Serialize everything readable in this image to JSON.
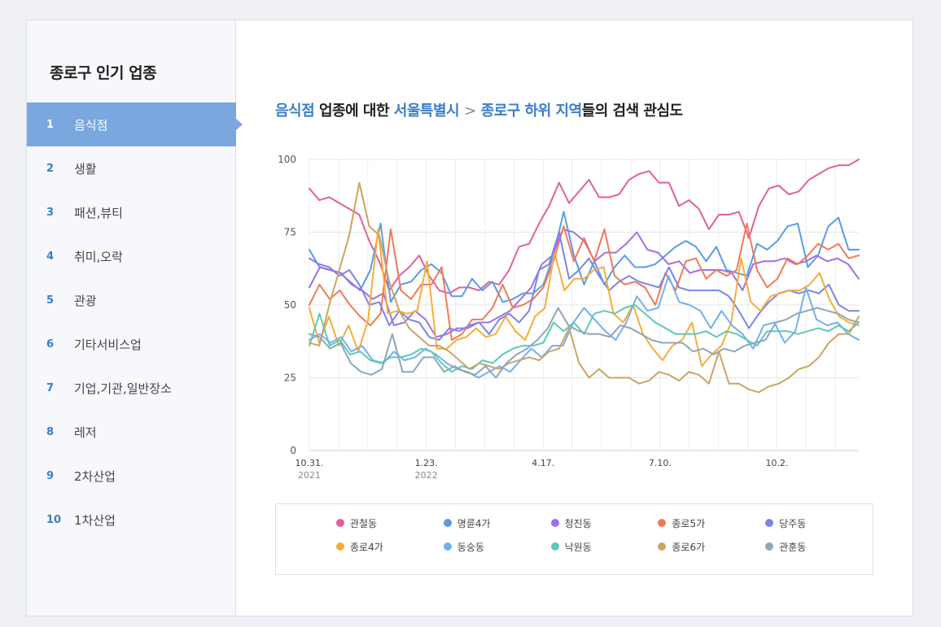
{
  "sidebar": {
    "title": "종로구 인기 업종",
    "items": [
      {
        "num": "1",
        "label": "음식점"
      },
      {
        "num": "2",
        "label": "생활"
      },
      {
        "num": "3",
        "label": "패션,뷰티"
      },
      {
        "num": "4",
        "label": "취미,오락"
      },
      {
        "num": "5",
        "label": "관광"
      },
      {
        "num": "6",
        "label": "기타서비스업"
      },
      {
        "num": "7",
        "label": "기업,기관,일반장소"
      },
      {
        "num": "8",
        "label": "레저"
      },
      {
        "num": "9",
        "label": "2차산업"
      },
      {
        "num": "10",
        "label": "1차산업"
      }
    ],
    "active_index": 0
  },
  "headline": {
    "category": "음식점",
    "text1": " 업종에 대한 ",
    "city": "서울특별시",
    "separator": ">",
    "district": "종로구 하위 지역",
    "text2": "들의 검색 관심도"
  },
  "chart_data": {
    "type": "line",
    "ylim": [
      0,
      100
    ],
    "yticks": [
      0,
      25,
      50,
      75,
      100
    ],
    "xlim": [
      0,
      47
    ],
    "xticks": [
      {
        "i": 0,
        "label": "10.31.",
        "sub": "2021"
      },
      {
        "i": 10,
        "label": "1.23.",
        "sub": "2022"
      },
      {
        "i": 20,
        "label": "4.17.",
        "sub": ""
      },
      {
        "i": 30,
        "label": "7.10.",
        "sub": ""
      },
      {
        "i": 40,
        "label": "10.2.",
        "sub": ""
      }
    ],
    "grid": true,
    "legend": "bottom",
    "series": [
      {
        "name": "관철동",
        "color": "#e0609e",
        "values": [
          90,
          86,
          87,
          85,
          83,
          81,
          72,
          65,
          55,
          60,
          63,
          67,
          60,
          55,
          54,
          56,
          56,
          55,
          58,
          57,
          62,
          70,
          71,
          78,
          84,
          92,
          85,
          89,
          93,
          87,
          87,
          88,
          93,
          95,
          96,
          92,
          92,
          84,
          86,
          83,
          76,
          81,
          81,
          82,
          73,
          84,
          90,
          91,
          88,
          89,
          93,
          95,
          97,
          98,
          98,
          100
        ]
      },
      {
        "name": "명륜4가",
        "color": "#5b9be6",
        "values": [
          69,
          63,
          62,
          61,
          58,
          55,
          62,
          78,
          51,
          57,
          58,
          62,
          64,
          61,
          53,
          53,
          59,
          55,
          58,
          51,
          52,
          54,
          54,
          57,
          67,
          82,
          67,
          57,
          65,
          57,
          63,
          67,
          63,
          63,
          64,
          67,
          70,
          72,
          70,
          65,
          70,
          62,
          61,
          60,
          71,
          69,
          72,
          77,
          78,
          63,
          67,
          77,
          80,
          69,
          69
        ]
      },
      {
        "name": "청진동",
        "color": "#a070e6",
        "values": [
          56,
          63,
          62,
          61,
          57,
          55,
          52,
          54,
          43,
          44,
          48,
          45,
          39,
          40,
          42,
          42,
          44,
          44,
          46,
          48,
          52,
          56,
          64,
          67,
          76,
          75,
          72,
          65,
          68,
          68,
          71,
          75,
          69,
          68,
          64,
          65,
          61,
          62,
          62,
          62,
          61,
          55,
          64,
          65,
          65,
          66,
          64,
          65,
          67,
          65,
          66,
          64,
          59
        ]
      },
      {
        "name": "종로5가",
        "color": "#f07a57",
        "values": [
          50,
          57,
          52,
          55,
          50,
          46,
          43,
          47,
          76,
          55,
          52,
          57,
          57,
          63,
          38,
          40,
          45,
          45,
          49,
          57,
          49,
          50,
          52,
          56,
          65,
          77,
          65,
          73,
          65,
          76,
          60,
          57,
          58,
          56,
          50,
          61,
          55,
          65,
          66,
          59,
          62,
          60,
          62,
          78,
          62,
          56,
          59,
          66,
          64,
          67,
          71,
          69,
          71,
          66,
          67
        ]
      },
      {
        "name": "당주동",
        "color": "#7b86e6",
        "values": [
          66,
          64,
          63,
          60,
          62,
          57,
          50,
          51,
          43,
          48,
          45,
          44,
          39,
          38,
          42,
          41,
          43,
          44,
          40,
          45,
          47,
          44,
          48,
          62,
          64,
          75,
          59,
          62,
          66,
          60,
          55,
          58,
          60,
          58,
          57,
          56,
          63,
          56,
          55,
          55,
          55,
          55,
          53,
          48,
          42,
          47,
          51,
          54,
          55,
          54,
          55,
          54,
          57,
          50,
          48,
          48
        ]
      },
      {
        "name": "종로4가",
        "color": "#f4ae3a",
        "values": [
          49,
          37,
          46,
          36,
          43,
          34,
          45,
          76,
          47,
          48,
          47,
          48,
          65,
          35,
          35,
          38,
          39,
          42,
          39,
          40,
          46,
          41,
          38,
          46,
          49,
          68,
          55,
          59,
          59,
          62,
          63,
          47,
          44,
          50,
          40,
          35,
          31,
          36,
          38,
          44,
          29,
          33,
          36,
          44,
          66,
          51,
          48,
          53,
          54,
          55,
          55,
          57,
          61,
          52,
          46,
          44,
          43
        ]
      },
      {
        "name": "동숭동",
        "color": "#73b0ee",
        "values": [
          38,
          40,
          37,
          39,
          34,
          36,
          31,
          30,
          34,
          31,
          32,
          35,
          33,
          30,
          28,
          27,
          25,
          27,
          29,
          27,
          31,
          35,
          32,
          36,
          36,
          44,
          49,
          45,
          41,
          38,
          44,
          53,
          48,
          49,
          60,
          51,
          50,
          48,
          42,
          48,
          43,
          40,
          35,
          43,
          44,
          37,
          41,
          56,
          45,
          43,
          44,
          40,
          38
        ]
      },
      {
        "name": "낙원동",
        "color": "#5ec8b8",
        "values": [
          36,
          47,
          36,
          38,
          33,
          34,
          31,
          30,
          32,
          32,
          33,
          35,
          34,
          30,
          27,
          29,
          28,
          31,
          30,
          33,
          35,
          36,
          36,
          37,
          44,
          41,
          44,
          40,
          47,
          48,
          47,
          49,
          50,
          47,
          44,
          42,
          40,
          40,
          40,
          41,
          39,
          41,
          40,
          38,
          36,
          41,
          41,
          41,
          40,
          41,
          42,
          41,
          43,
          41,
          44
        ]
      },
      {
        "name": "종로6가",
        "color": "#c9a564",
        "values": [
          37,
          36,
          50,
          62,
          74,
          92,
          77,
          74,
          58,
          48,
          42,
          39,
          36,
          36,
          34,
          31,
          28,
          30,
          29,
          28,
          30,
          31,
          32,
          31,
          34,
          35,
          42,
          30,
          25,
          28,
          25,
          25,
          25,
          23,
          24,
          27,
          26,
          24,
          27,
          26,
          23,
          34,
          23,
          23,
          21,
          20,
          22,
          23,
          25,
          28,
          29,
          32,
          37,
          40,
          40,
          46
        ]
      },
      {
        "name": "관훈동",
        "color": "#8ea6bc",
        "values": [
          40,
          39,
          35,
          37,
          30,
          27,
          26,
          28,
          40,
          27,
          27,
          32,
          32,
          27,
          29,
          27,
          26,
          29,
          25,
          30,
          33,
          35,
          38,
          42,
          49,
          43,
          41,
          40,
          40,
          39,
          43,
          42,
          40,
          38,
          37,
          37,
          37,
          34,
          35,
          33,
          35,
          34,
          36,
          37,
          38,
          44,
          45,
          47,
          48,
          49,
          48,
          47,
          45,
          44
        ]
      }
    ]
  }
}
